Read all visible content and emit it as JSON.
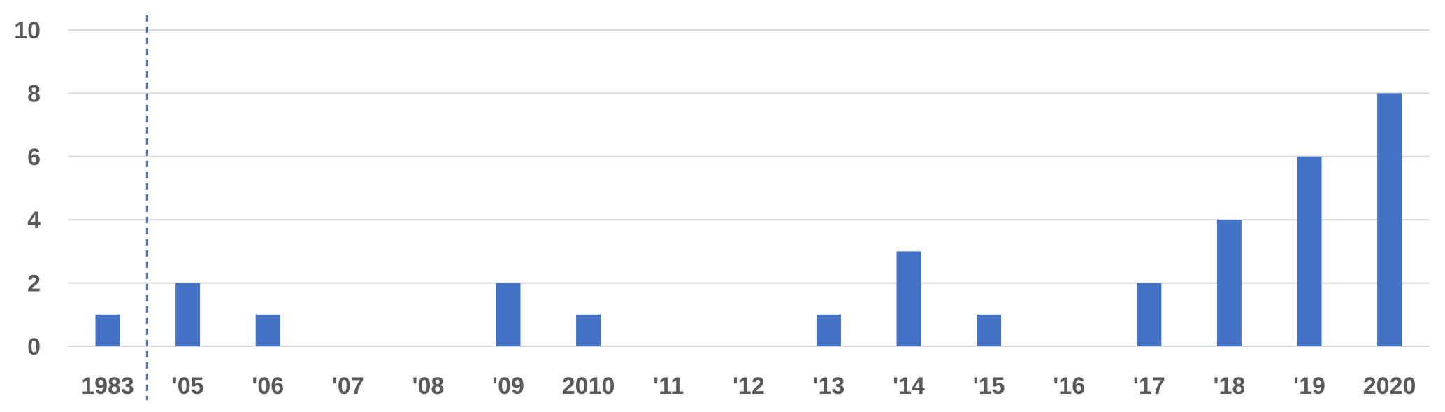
{
  "chart_data": {
    "type": "bar",
    "title": "",
    "xlabel": "",
    "ylabel": "",
    "categories": [
      "1983",
      "'05",
      "'06",
      "'07",
      "'08",
      "'09",
      "2010",
      "'11",
      "'12",
      "'13",
      "'14",
      "'15",
      "'16",
      "'17",
      "'18",
      "'19",
      "2020"
    ],
    "values": [
      1,
      2,
      1,
      0,
      0,
      2,
      1,
      0,
      0,
      1,
      3,
      1,
      0,
      2,
      4,
      6,
      8
    ],
    "ylim": [
      0,
      10
    ],
    "yticks": [
      0,
      2,
      4,
      6,
      8,
      10
    ],
    "grid": true,
    "legend": "none",
    "bar_color": "#4472c4",
    "axis_break_after": "1983",
    "axis_break_style": "dashed vertical line"
  }
}
